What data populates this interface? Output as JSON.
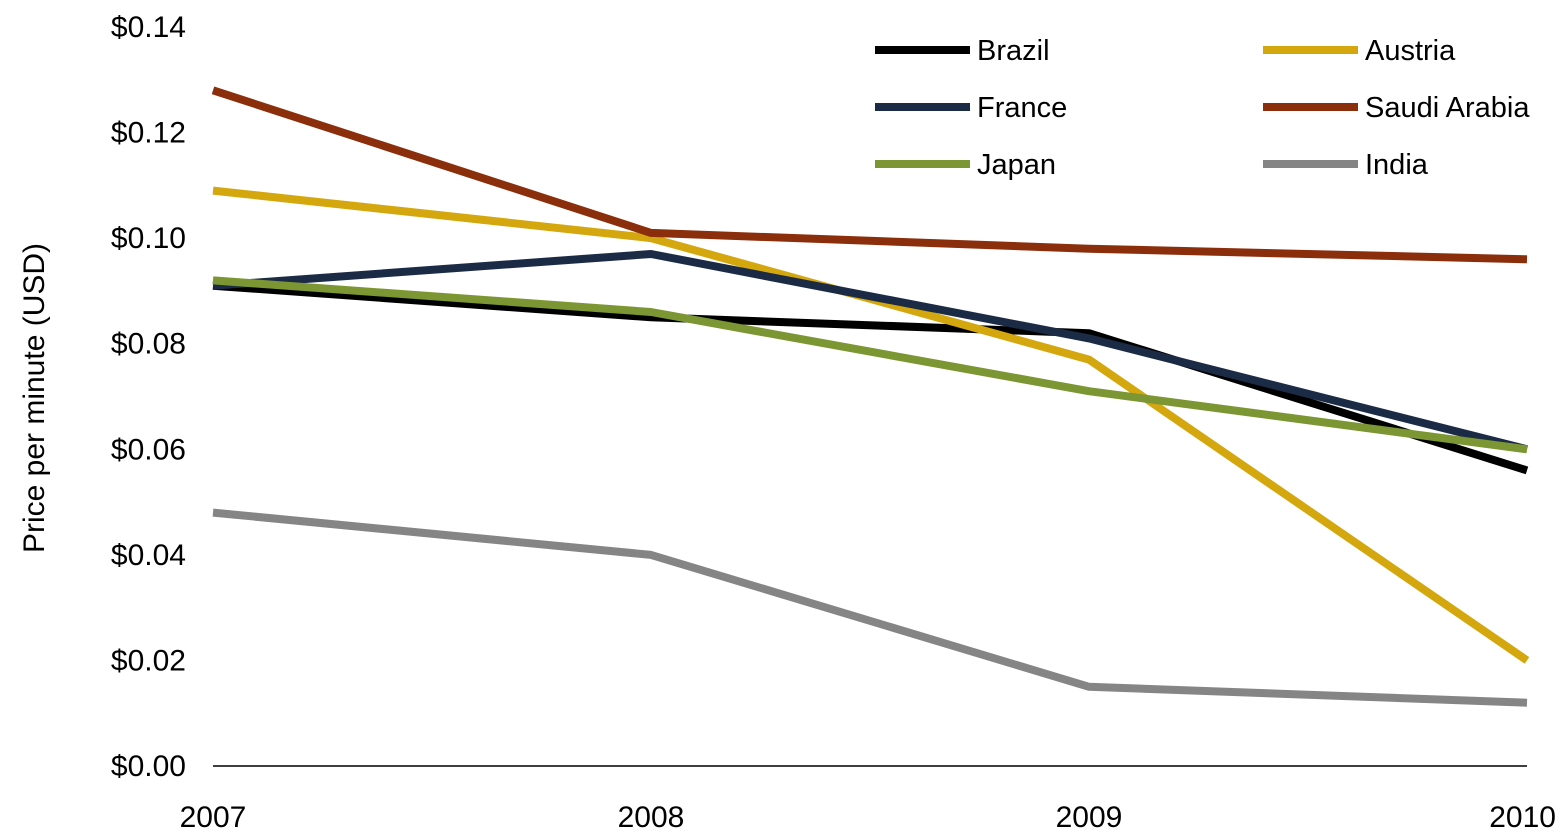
{
  "chart_data": {
    "type": "line",
    "title": "",
    "xlabel": "",
    "ylabel": "Price per minute (USD)",
    "x": [
      "2007",
      "2008",
      "2009",
      "2010"
    ],
    "ylim": [
      0,
      0.14
    ],
    "y_ticks": [
      {
        "value": 0.0,
        "label": "$0.00"
      },
      {
        "value": 0.02,
        "label": "$0.02"
      },
      {
        "value": 0.04,
        "label": "$0.04"
      },
      {
        "value": 0.06,
        "label": "$0.06"
      },
      {
        "value": 0.08,
        "label": "$0.08"
      },
      {
        "value": 0.1,
        "label": "$0.10"
      },
      {
        "value": 0.12,
        "label": "$0.12"
      },
      {
        "value": 0.14,
        "label": "$0.14"
      }
    ],
    "grid": false,
    "legend_position": "top-right",
    "series": [
      {
        "name": "Brazil",
        "color": "#000000",
        "values": [
          0.091,
          0.085,
          0.082,
          0.056
        ]
      },
      {
        "name": "Austria",
        "color": "#d4a70e",
        "values": [
          0.109,
          0.1,
          0.077,
          0.02
        ]
      },
      {
        "name": "France",
        "color": "#1c2b45",
        "values": [
          0.091,
          0.097,
          0.081,
          0.06
        ]
      },
      {
        "name": "Saudi Arabia",
        "color": "#8b2e0b",
        "values": [
          0.128,
          0.101,
          0.098,
          0.096
        ]
      },
      {
        "name": "Japan",
        "color": "#7c9633",
        "values": [
          0.092,
          0.086,
          0.071,
          0.06
        ]
      },
      {
        "name": "India",
        "color": "#858585",
        "values": [
          0.048,
          0.04,
          0.015,
          0.012
        ]
      }
    ]
  }
}
